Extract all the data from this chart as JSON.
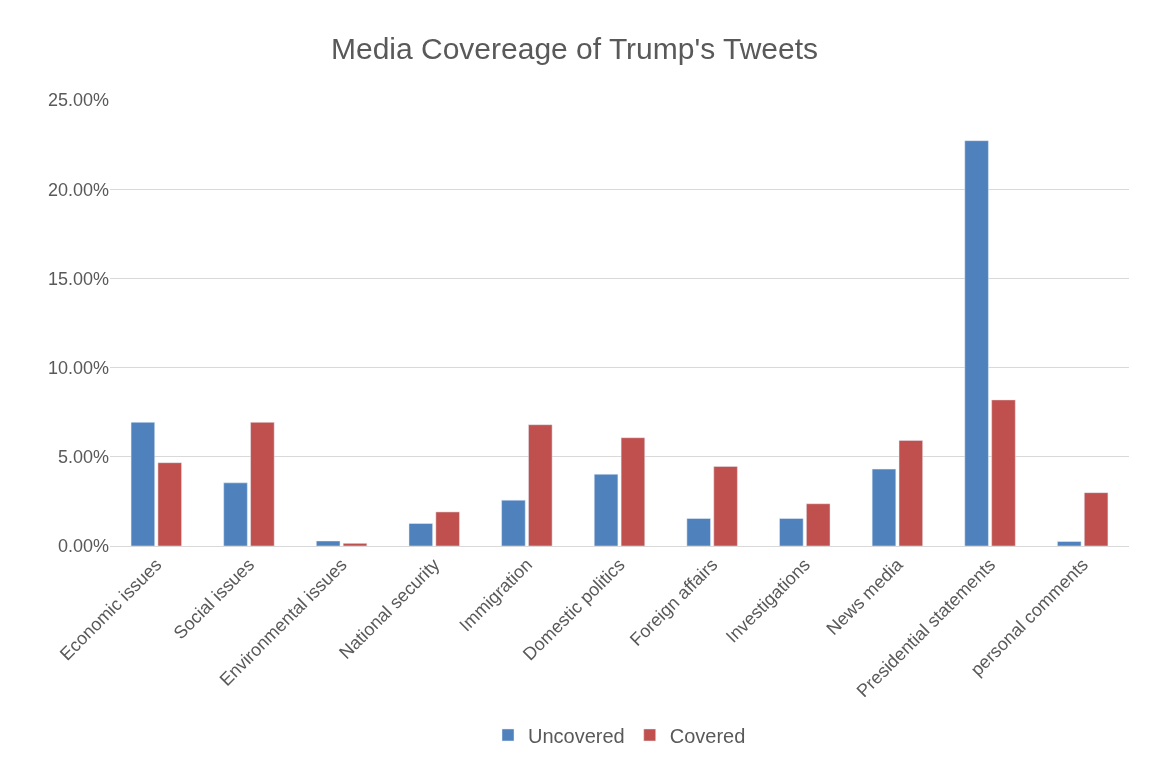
{
  "chart_data": {
    "type": "bar",
    "title": "Media Covereage of Trump's Tweets",
    "categories": [
      "Economic issues",
      "Social issues",
      "Environmental issues",
      "National security",
      "Immigration",
      "Domestic politics",
      "Foreign affairs",
      "Investigations",
      "News media",
      "Presidential statements",
      "personal comments"
    ],
    "series": [
      {
        "name": "Uncovered",
        "color": "#4f81bd",
        "values": [
          6.93,
          3.54,
          0.28,
          1.26,
          2.57,
          4.02,
          1.54,
          1.54,
          4.31,
          22.72,
          0.25
        ]
      },
      {
        "name": "Covered",
        "color": "#c0504d",
        "values": [
          4.67,
          6.93,
          0.15,
          1.91,
          6.8,
          6.07,
          4.46,
          2.37,
          5.92,
          8.19,
          2.99
        ]
      }
    ],
    "ylim": [
      0,
      25
    ],
    "yticks": [
      {
        "value": 0,
        "label": "0.00%"
      },
      {
        "value": 5,
        "label": "5.00%"
      },
      {
        "value": 10,
        "label": "10.00%"
      },
      {
        "value": 15,
        "label": "15.00%"
      },
      {
        "value": 20,
        "label": "20.00%"
      },
      {
        "value": 25,
        "label": "25.00%"
      }
    ],
    "grid": "y",
    "legend": "bottom"
  }
}
